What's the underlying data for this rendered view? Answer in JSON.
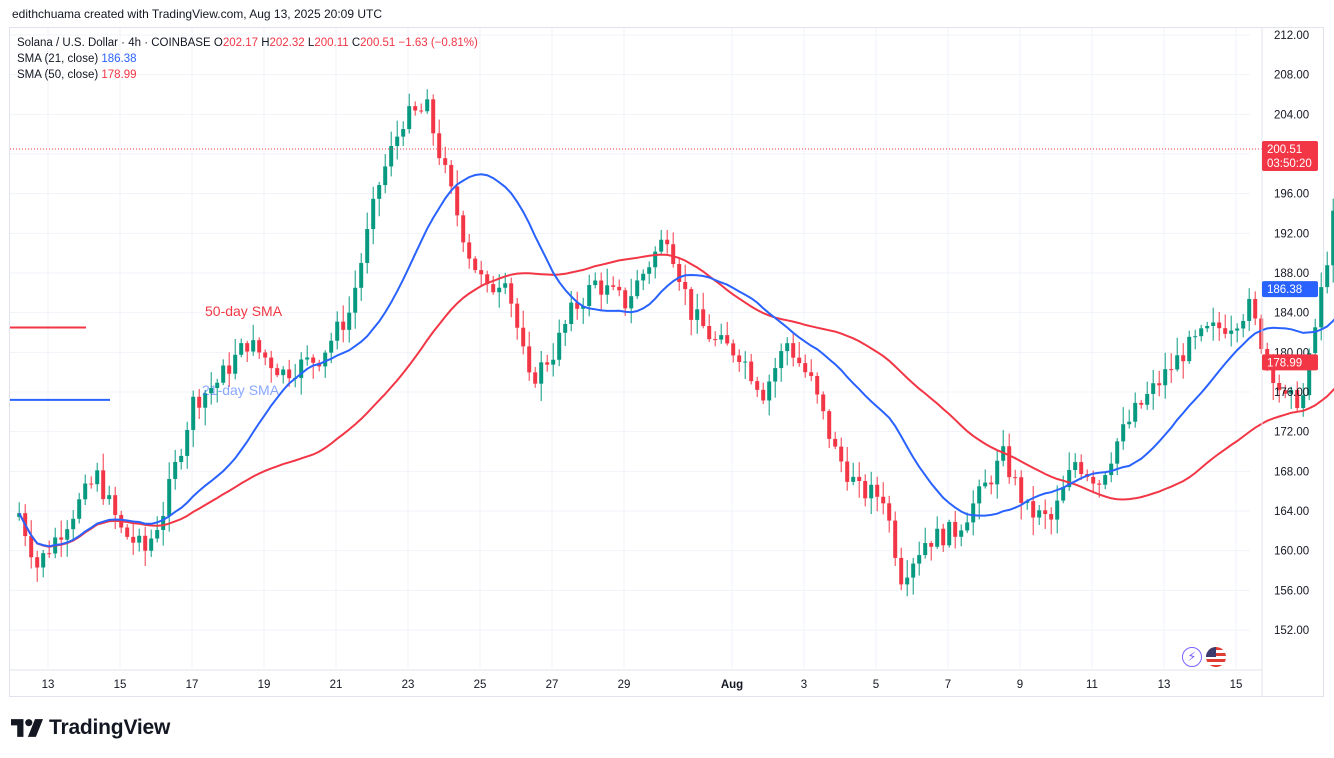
{
  "header": {
    "credit": "edithchuama created with TradingView.com, Aug 13, 2025 20:09 UTC"
  },
  "legend": {
    "symbol": "Solana / U.S. Dollar · 4h · COINBASE",
    "o_label": "O",
    "o_value": "202.17",
    "h_label": "H",
    "h_value": "202.32",
    "l_label": "L",
    "l_value": "200.11",
    "c_label": "C",
    "c_value": "200.51",
    "change": "−1.63 (−0.81%)",
    "sma21_label": "SMA (21, close)",
    "sma21_value": "186.38",
    "sma50_label": "SMA (50, close)",
    "sma50_value": "178.99"
  },
  "annotations": {
    "sma50_text": "50-day SMA",
    "sma21_text": "21-day SMA"
  },
  "price_tag": {
    "price": "200.51",
    "countdown": "03:50:20"
  },
  "logo": {
    "text": "TradingView"
  },
  "colors": {
    "up": "#089981",
    "down": "#f23645",
    "sma21": "#2962ff",
    "sma50": "#f23645",
    "grid": "#f0f3fa",
    "text": "#131722"
  },
  "icons": [
    "tradingview-logo-icon",
    "flash-icon",
    "us-flag-icon"
  ],
  "chart_data": {
    "type": "candlestick",
    "title": "Solana / U.S. Dollar · 4h · COINBASE",
    "ylim": [
      149.5,
      213.5
    ],
    "y_ticks": [
      "212.00",
      "208.00",
      "204.00",
      "200.00",
      "196.00",
      "192.00",
      "188.00",
      "184.00",
      "180.00",
      "176.00",
      "172.00",
      "168.00",
      "164.00",
      "160.00",
      "156.00",
      "152.00"
    ],
    "x_ticks": [
      {
        "label": "13",
        "day": 13
      },
      {
        "label": "15",
        "day": 15
      },
      {
        "label": "17",
        "day": 17
      },
      {
        "label": "19",
        "day": 19
      },
      {
        "label": "21",
        "day": 21
      },
      {
        "label": "23",
        "day": 23
      },
      {
        "label": "25",
        "day": 25
      },
      {
        "label": "27",
        "day": 27
      },
      {
        "label": "29",
        "day": 29
      },
      {
        "label": "Aug",
        "day": 32
      },
      {
        "label": "3",
        "day": 34
      },
      {
        "label": "5",
        "day": 36
      },
      {
        "label": "7",
        "day": 38
      },
      {
        "label": "9",
        "day": 40
      },
      {
        "label": "11",
        "day": 42
      },
      {
        "label": "13",
        "day": 44
      },
      {
        "label": "15",
        "day": 46
      }
    ],
    "candle_start_day": 12.2,
    "candles_per_day": 6,
    "anchors": [
      [
        0,
        163.8
      ],
      [
        3,
        158.5
      ],
      [
        8,
        163
      ],
      [
        13,
        167.5
      ],
      [
        17,
        162
      ],
      [
        21,
        160
      ],
      [
        24,
        164
      ],
      [
        29,
        175
      ],
      [
        33,
        177
      ],
      [
        38,
        181
      ],
      [
        44,
        178
      ],
      [
        50,
        179.5
      ],
      [
        55,
        184
      ],
      [
        60,
        197
      ],
      [
        64,
        203.5
      ],
      [
        68,
        204.5
      ],
      [
        71,
        198
      ],
      [
        75,
        190
      ],
      [
        78,
        186
      ],
      [
        81,
        188
      ],
      [
        85,
        177
      ],
      [
        89,
        180
      ],
      [
        92,
        184
      ],
      [
        96,
        187
      ],
      [
        101,
        185
      ],
      [
        105,
        189
      ],
      [
        108,
        192
      ],
      [
        112,
        184
      ],
      [
        116,
        181
      ],
      [
        120,
        180
      ],
      [
        124,
        176
      ],
      [
        128,
        181
      ],
      [
        132,
        177
      ],
      [
        136,
        170
      ],
      [
        140,
        166
      ],
      [
        144,
        165.5
      ],
      [
        147,
        157.5
      ],
      [
        151,
        161
      ],
      [
        156,
        162
      ],
      [
        160,
        165.5
      ],
      [
        164,
        169.5
      ],
      [
        168,
        164
      ],
      [
        172,
        163
      ],
      [
        176,
        169
      ],
      [
        180,
        167
      ],
      [
        183,
        171
      ],
      [
        186,
        174
      ],
      [
        190,
        177
      ],
      [
        194,
        180
      ],
      [
        198,
        182
      ],
      [
        202,
        183
      ],
      [
        205,
        184.5
      ],
      [
        208,
        179.5
      ],
      [
        211,
        175
      ],
      [
        214,
        175.5
      ],
      [
        217,
        186
      ],
      [
        220,
        197
      ],
      [
        223,
        200.5
      ]
    ],
    "last_close": 200.51,
    "sma21_last": 186.38,
    "sma50_last": 178.99,
    "series": [
      {
        "name": "SMA (21, close)",
        "period": 21
      },
      {
        "name": "SMA (50, close)",
        "period": 50
      }
    ],
    "annotation_lines": [
      {
        "label": "50-day SMA",
        "value": 182.5
      },
      {
        "label": "21-day SMA",
        "value": 175.2
      }
    ],
    "grid": true
  }
}
